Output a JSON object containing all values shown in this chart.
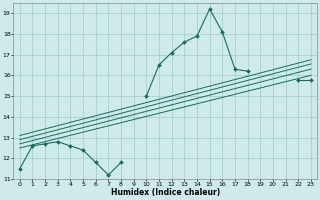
{
  "xlabel": "Humidex (Indice chaleur)",
  "ylabel": "",
  "background_color": "#ceeaea",
  "grid_color": "#aacece",
  "line_color": "#1a6b5e",
  "xlim": [
    -0.5,
    23.5
  ],
  "ylim": [
    11,
    19.5
  ],
  "xticks": [
    0,
    1,
    2,
    3,
    4,
    5,
    6,
    7,
    8,
    9,
    10,
    11,
    12,
    13,
    14,
    15,
    16,
    17,
    18,
    19,
    20,
    21,
    22,
    23
  ],
  "yticks": [
    11,
    12,
    13,
    14,
    15,
    16,
    17,
    18,
    19
  ],
  "series_main": [
    11.5,
    12.6,
    12.7,
    12.8,
    12.6,
    12.4,
    11.8,
    11.2,
    11.8,
    null,
    15.0,
    16.5,
    17.1,
    17.6,
    17.9,
    19.2,
    18.1,
    16.3,
    16.2,
    null,
    null,
    null,
    15.8,
    15.8
  ],
  "reg_lines": [
    {
      "x0": 0,
      "y0": 12.5,
      "x1": 23,
      "y1": 16.0
    },
    {
      "x0": 0,
      "y0": 12.7,
      "x1": 23,
      "y1": 16.3
    },
    {
      "x0": 0,
      "y0": 12.9,
      "x1": 23,
      "y1": 16.55
    },
    {
      "x0": 0,
      "y0": 13.1,
      "x1": 23,
      "y1": 16.75
    }
  ]
}
